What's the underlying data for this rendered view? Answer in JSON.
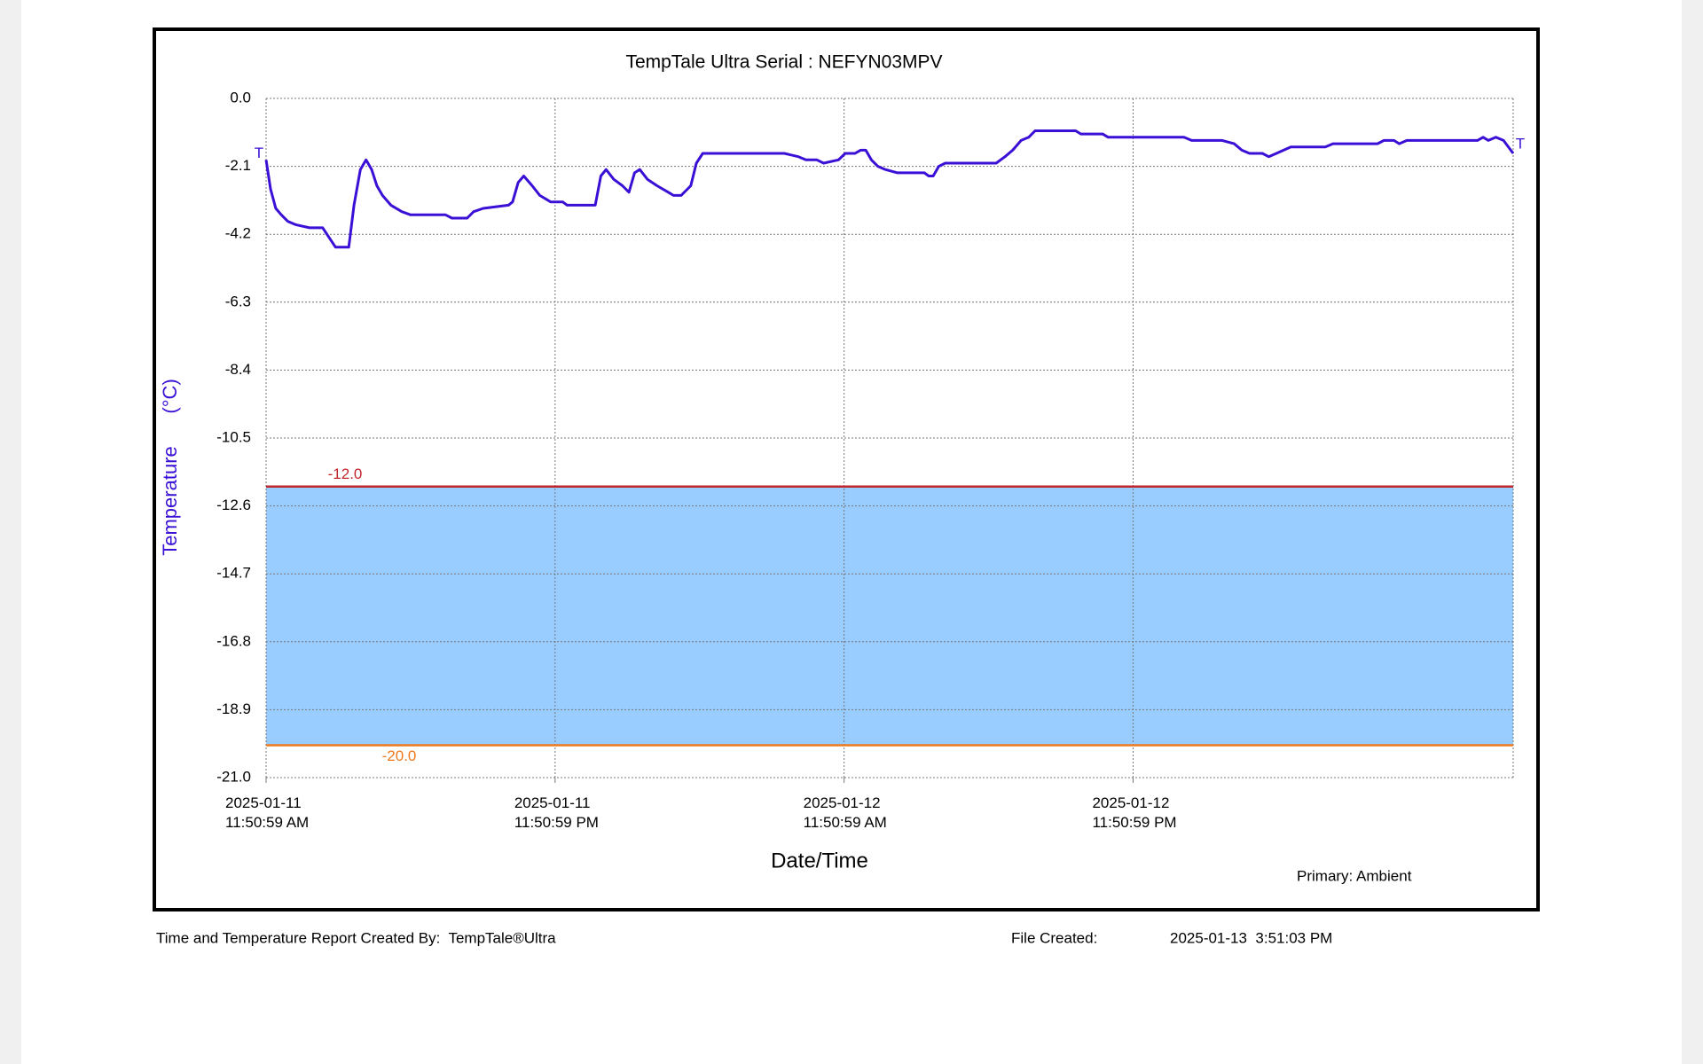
{
  "chart_data": {
    "type": "line",
    "title": "TempTale Ultra  Serial : NEFYN03MPV",
    "x_label": "Date/Time",
    "y_label": "Temperature      (°C)",
    "legend_note": "Primary: Ambient",
    "start_marker": "T",
    "end_marker": "T",
    "xlim": [
      "2025-01-11 11:50:59",
      "2025-01-13 15:37:59"
    ],
    "xticks": [
      {
        "value": "2025-01-11 11:50:59",
        "label": "2025-01-11\n11:50:59 AM"
      },
      {
        "value": "2025-01-11 23:50:59",
        "label": "2025-01-11\n11:50:59 PM"
      },
      {
        "value": "2025-01-12 11:50:59",
        "label": "2025-01-12\n11:50:59 AM"
      },
      {
        "value": "2025-01-12 23:50:59",
        "label": "2025-01-12\n11:50:59 PM"
      }
    ],
    "ylim": [
      -21,
      0
    ],
    "yticks": [
      {
        "value": 0,
        "label": "0.0"
      },
      -2.1,
      -4.2,
      -6.3,
      -8.4,
      -10.5,
      -12.6,
      -14.7,
      -16.8,
      -18.9,
      {
        "value": -21,
        "label": "-21.0"
      }
    ],
    "grid": true,
    "alarm_limits": [
      {
        "value": -12,
        "label": "-12.0",
        "color": "#c0272d"
      },
      {
        "value": -20,
        "label": "-20.0",
        "color": "#ee7a1e"
      }
    ],
    "band_color": "#99ccff",
    "x": [
      "2025-01-11 11:50:59",
      "2025-01-11 12:01:59",
      "2025-01-11 12:14:59",
      "2025-01-11 12:28:59",
      "2025-01-11 12:44:59",
      "2025-01-11 13:03:59",
      "2025-01-11 13:38:59",
      "2025-01-11 14:11:59",
      "2025-01-11 14:27:59",
      "2025-01-11 14:43:59",
      "2025-01-11 15:16:59",
      "2025-01-11 15:29:59",
      "2025-01-11 15:45:59",
      "2025-01-11 15:59:59",
      "2025-01-11 16:13:59",
      "2025-01-11 16:26:59",
      "2025-01-11 16:40:59",
      "2025-01-11 17:01:59",
      "2025-01-11 17:28:59",
      "2025-01-11 17:50:59",
      "2025-01-11 19:17:59",
      "2025-01-11 19:33:59",
      "2025-01-11 20:11:59",
      "2025-01-11 20:27:59",
      "2025-01-11 20:51:59",
      "2025-01-11 21:54:59",
      "2025-01-11 22:04:59",
      "2025-01-11 22:18:59",
      "2025-01-11 22:32:59",
      "2025-01-11 22:53:59",
      "2025-01-11 23:12:59",
      "2025-01-11 23:39:59",
      "2025-01-12 00:09:59",
      "2025-01-12 00:20:59",
      "2025-01-12 01:30:59",
      "2025-01-12 01:44:59",
      "2025-01-12 01:57:59",
      "2025-01-12 02:16:59",
      "2025-01-12 02:38:59",
      "2025-01-12 02:54:59",
      "2025-01-12 03:08:59",
      "2025-01-12 03:21:59",
      "2025-01-12 03:40:59",
      "2025-01-12 04:04:59",
      "2025-01-12 04:32:59",
      "2025-01-12 04:45:59",
      "2025-01-12 05:04:59",
      "2025-01-12 05:28:59",
      "2025-01-12 05:42:59",
      "2025-01-12 05:58:59",
      "2025-01-12 09:21:59",
      "2025-01-12 09:56:59",
      "2025-01-12 10:15:59",
      "2025-01-12 10:42:59",
      "2025-01-12 10:59:59",
      "2025-01-12 11:36:59",
      "2025-01-12 11:53:59",
      "2025-01-12 12:17:59",
      "2025-01-12 12:31:59",
      "2025-01-12 12:44:59",
      "2025-01-12 12:58:59",
      "2025-01-12 13:14:59",
      "2025-01-12 13:33:59",
      "2025-01-12 14:03:59",
      "2025-01-12 14:32:59",
      "2025-01-12 15:10:59",
      "2025-01-12 15:21:59",
      "2025-01-12 15:32:59",
      "2025-01-12 15:46:59",
      "2025-01-12 16:02:59",
      "2025-01-12 18:09:59",
      "2025-01-12 18:31:59",
      "2025-01-12 18:50:59",
      "2025-01-12 19:11:59",
      "2025-01-12 19:30:59",
      "2025-01-12 19:46:59",
      "2025-01-12 21:27:59",
      "2025-01-12 21:40:59",
      "2025-01-12 22:34:59",
      "2025-01-12 22:48:59",
      "2025-01-13 01:57:59",
      "2025-01-13 02:16:59",
      "2025-01-13 03:32:59",
      "2025-01-13 04:02:59",
      "2025-01-13 04:21:59",
      "2025-01-13 04:40:59",
      "2025-01-13 05:12:59",
      "2025-01-13 05:28:59",
      "2025-01-13 05:47:59",
      "2025-01-13 06:23:59",
      "2025-01-13 07:49:59",
      "2025-01-13 08:08:59",
      "2025-01-13 09:59:59",
      "2025-01-13 10:15:59",
      "2025-01-13 10:40:59",
      "2025-01-13 10:53:59",
      "2025-01-13 11:12:59",
      "2025-01-13 14:08:59",
      "2025-01-13 14:22:59",
      "2025-01-13 14:35:59",
      "2025-01-13 14:54:59",
      "2025-01-13 15:13:59",
      "2025-01-13 15:37:59"
    ],
    "series": [
      {
        "name": "Ambient",
        "color": "#3a10d6",
        "values": [
          -1.9,
          -2.8,
          -3.4,
          -3.6,
          -3.8,
          -3.9,
          -4.0,
          -4.0,
          -4.3,
          -4.6,
          -4.6,
          -3.3,
          -2.2,
          -1.9,
          -2.2,
          -2.7,
          -3.0,
          -3.3,
          -3.5,
          -3.6,
          -3.6,
          -3.7,
          -3.7,
          -3.5,
          -3.4,
          -3.3,
          -3.2,
          -2.6,
          -2.4,
          -2.7,
          -3.0,
          -3.2,
          -3.2,
          -3.3,
          -3.3,
          -2.4,
          -2.2,
          -2.5,
          -2.7,
          -2.9,
          -2.3,
          -2.2,
          -2.5,
          -2.7,
          -2.9,
          -3.0,
          -3.0,
          -2.7,
          -2.0,
          -1.7,
          -1.7,
          -1.8,
          -1.9,
          -1.9,
          -2.0,
          -1.9,
          -1.7,
          -1.7,
          -1.6,
          -1.6,
          -1.9,
          -2.1,
          -2.2,
          -2.3,
          -2.3,
          -2.3,
          -2.4,
          -2.4,
          -2.1,
          -2.0,
          -2.0,
          -1.8,
          -1.6,
          -1.3,
          -1.2,
          -1.0,
          -1.0,
          -1.1,
          -1.1,
          -1.2,
          -1.2,
          -1.3,
          -1.3,
          -1.4,
          -1.6,
          -1.7,
          -1.7,
          -1.8,
          -1.7,
          -1.5,
          -1.5,
          -1.4,
          -1.4,
          -1.3,
          -1.3,
          -1.4,
          -1.3,
          -1.3,
          -1.2,
          -1.3,
          -1.2,
          -1.3,
          -1.7
        ]
      }
    ]
  },
  "footer": {
    "created_by": "Time and Temperature Report Created By:  TempTale®Ultra",
    "file_created_label": "File Created:",
    "file_created": "2025-01-13  3:51:03 PM"
  }
}
